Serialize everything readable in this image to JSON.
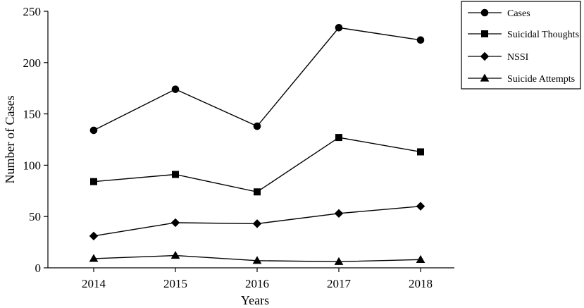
{
  "chart_data": {
    "type": "line",
    "title": "",
    "xlabel": "Years",
    "ylabel": "Number of Cases",
    "categories": [
      "2014",
      "2015",
      "2016",
      "2017",
      "2018"
    ],
    "ylim": [
      0,
      250
    ],
    "yticks": [
      "0",
      "50",
      "100",
      "150",
      "200",
      "250"
    ],
    "grid": false,
    "legend_position": "top-right",
    "series": [
      {
        "name": "Cases",
        "marker": "circle",
        "values": [
          134,
          174,
          138,
          234,
          222
        ]
      },
      {
        "name": "Suicidal Thoughts",
        "marker": "square",
        "values": [
          84,
          91,
          74,
          127,
          113
        ]
      },
      {
        "name": "NSSI",
        "marker": "diamond",
        "values": [
          31,
          44,
          43,
          53,
          60
        ]
      },
      {
        "name": "Suicide Attempts",
        "marker": "triangle",
        "values": [
          9,
          12,
          7,
          6,
          8
        ]
      }
    ],
    "line_color": "#000000"
  }
}
